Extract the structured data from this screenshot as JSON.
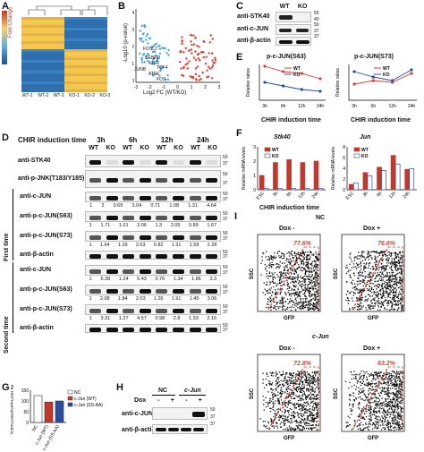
{
  "panels": {
    "A": {
      "label": "A",
      "legend_title": "Fold Change",
      "legend_ticks": [
        "4",
        "2",
        "0",
        "-2",
        "-4"
      ],
      "samples": [
        "WT-1",
        "WT-2",
        "WT-3",
        "KO-1",
        "KO-2",
        "KO-3"
      ]
    },
    "B": {
      "label": "B",
      "ylabel": "-Log10 (p-value)",
      "xlabel": "Log2 FC (WT/KO)",
      "xticks": [
        "-3",
        "-2",
        "-1",
        "0",
        "1",
        "2",
        "3"
      ],
      "yticks": [
        "0",
        "1",
        "2",
        "3",
        "4"
      ],
      "genes": [
        "FOSL2",
        "CEBPD",
        "KLF6",
        "JUNB",
        "ATF6",
        "TCF4",
        "FOS"
      ]
    },
    "C": {
      "label": "C",
      "header": [
        "WT",
        "KO"
      ],
      "rows": [
        "anti-STK40",
        "anti-c-JUN",
        "anti-β-actin"
      ],
      "mw": [
        "55",
        "40",
        "50",
        "37",
        "37"
      ]
    },
    "D": {
      "label": "D",
      "title": "CHIR induction time",
      "times": [
        "3h",
        "6h",
        "12h",
        "24h"
      ],
      "genotypes": [
        "WT",
        "KO",
        "WT",
        "KO",
        "WT",
        "KO",
        "WT",
        "KO"
      ],
      "top_rows": [
        "anti-STK40",
        "anti-p-JNK(T183/Y185)"
      ],
      "first_time": "First time",
      "second_time": "Second time",
      "rows1": [
        "anti-c-JUN",
        "anti-p-c-JUN(S63)",
        "anti-p-c-JUN(S73)",
        "anti-β-actin"
      ],
      "rows2": [
        "anti-c-JUN",
        "anti-p-c-JUN(S63)",
        "anti-p-c-JUN(S73)",
        "anti-β-actin"
      ],
      "quant1_cjun": [
        "1",
        "2",
        "0.69",
        "3.04",
        "0.71",
        "1.08",
        "1.31",
        "4.64"
      ],
      "quant1_s63": [
        "1",
        "1.71",
        "1.01",
        "2.06",
        "1.3",
        "2.05",
        "0.89",
        "1.67"
      ],
      "quant1_s73": [
        "1",
        "1.64",
        "1.29",
        "2.63",
        "0.82",
        "1.31",
        "1.58",
        "2.28"
      ],
      "quant2_cjun": [
        "1",
        "6.38",
        "1.24",
        "5.43",
        "0.76",
        "1.34",
        "1.86",
        "3.3"
      ],
      "quant2_s63": [
        "1",
        "2.08",
        "1.84",
        "2.03",
        "1.26",
        "1.91",
        "1.45",
        "3.06"
      ],
      "quant2_s73": [
        "1",
        "3.31",
        "1.27",
        "4.57",
        "0.98",
        "2.8",
        "1.33",
        "2.16"
      ],
      "mw": [
        "50",
        "37",
        "50",
        "37",
        "50",
        "37",
        "50",
        "37",
        "50",
        "37"
      ]
    },
    "E": {
      "label": "E",
      "plot1": {
        "title": "p-c-JUN(S63)",
        "ylabel": "Relative ratios",
        "legend": [
          "WT",
          "KO"
        ],
        "x": [
          "3h",
          "6h",
          "12h",
          "24h"
        ],
        "xlabel": "CHIR induction time"
      },
      "plot2": {
        "title": "p-c-JUN(S73)",
        "ylabel": "Relative ratios",
        "legend": [
          "WT",
          "KO"
        ],
        "x": [
          "3h",
          "6h",
          "12h",
          "24h"
        ],
        "xlabel": "CHIR induction time"
      }
    },
    "F": {
      "label": "F",
      "plot1": {
        "title": "Stk40",
        "ylabel": "Relative mRNA levels",
        "legend": [
          "WT",
          "KO"
        ],
        "x": [
          "ESC",
          "3h",
          "6h",
          "12h",
          "24h"
        ],
        "yticks": [
          "0",
          "1",
          "2",
          "3"
        ]
      },
      "plot2": {
        "title": "Jun",
        "ylabel": "Relative mRNA levels",
        "legend": [
          "WT",
          "KO"
        ],
        "x": [
          "ESC",
          "3h",
          "6h",
          "12h",
          "24h"
        ],
        "yticks": [
          "0",
          "2",
          "4",
          "6",
          "8"
        ]
      },
      "xlabel": "CHIR induction time"
    },
    "G": {
      "label": "G",
      "ylabel": "TOPFLASH/FOPFLASH Ratios",
      "legend": [
        "NC",
        "c-Jun (WT)",
        "c-Jun (SS-AA)"
      ],
      "x": [
        "NC",
        "c-Jun (WT)",
        "c-Jun (SS-AA)"
      ],
      "yticks": [
        "0",
        "50",
        "100",
        "150"
      ]
    },
    "H": {
      "label": "H",
      "groups": [
        "NC",
        "c-Jun"
      ],
      "dox_label": "Dox",
      "dox_states": [
        "-",
        "+",
        "-",
        "+"
      ],
      "rows": [
        "anti-c-JUN",
        "anti-β-actin"
      ],
      "mw": [
        "50",
        "37",
        "37"
      ]
    },
    "I": {
      "label": "I",
      "group1": "NC",
      "group2": "c-Jun",
      "conds": [
        "Dox -",
        "Dox +"
      ],
      "percents": [
        "77.6%",
        "76.6%",
        "72.8%",
        "63.2%"
      ],
      "ylabel": "SSC",
      "xlabel": "GFP",
      "yticks": [
        "3,167,129",
        "2,000,000",
        "1,000,000",
        "0"
      ],
      "xticks": [
        "10^2.8",
        "10^3",
        "10^4",
        "10^5"
      ]
    }
  },
  "chart_data": [
    {
      "type": "line",
      "title": "p-c-JUN(S63)",
      "xlabel": "CHIR induction time",
      "ylabel": "Relative ratios",
      "categories": [
        "3h",
        "6h",
        "12h",
        "24h"
      ],
      "series": [
        {
          "name": "WT",
          "values": [
            1.9,
            1.6,
            1.5,
            1.2
          ]
        },
        {
          "name": "KO",
          "values": [
            1.0,
            0.8,
            0.6,
            0.5
          ]
        }
      ]
    },
    {
      "type": "line",
      "title": "p-c-JUN(S73)",
      "xlabel": "CHIR induction time",
      "ylabel": "Relative ratios",
      "categories": [
        "3h",
        "6h",
        "12h",
        "24h"
      ],
      "series": [
        {
          "name": "WT",
          "values": [
            0.9,
            1.1,
            1.0,
            1.5
          ]
        },
        {
          "name": "KO",
          "values": [
            1.6,
            1.3,
            1.1,
            1.7
          ]
        }
      ]
    },
    {
      "type": "bar",
      "title": "Stk40",
      "ylabel": "Relative mRNA levels",
      "categories": [
        "ESC",
        "3h",
        "6h",
        "12h",
        "24h"
      ],
      "ylim": [
        0,
        3
      ],
      "series": [
        {
          "name": "WT",
          "values": [
            1.0,
            1.9,
            2.1,
            1.9,
            2.0
          ]
        },
        {
          "name": "KO",
          "values": [
            0.1,
            0.1,
            0.1,
            0.1,
            0.1
          ]
        }
      ]
    },
    {
      "type": "bar",
      "title": "Jun",
      "ylabel": "Relative mRNA levels",
      "categories": [
        "ESC",
        "3h",
        "6h",
        "12h",
        "24h"
      ],
      "ylim": [
        0,
        8
      ],
      "series": [
        {
          "name": "WT",
          "values": [
            1.0,
            3.2,
            4.2,
            6.4,
            3.8
          ]
        },
        {
          "name": "KO",
          "values": [
            1.3,
            2.6,
            3.6,
            4.8,
            3.9
          ]
        }
      ]
    },
    {
      "type": "bar",
      "ylabel": "TOPFLASH/FOPFLASH Ratios",
      "categories": [
        "NC",
        "c-Jun (WT)",
        "c-Jun (SS-AA)"
      ],
      "ylim": [
        0,
        150
      ],
      "values": [
        125,
        95,
        100
      ]
    }
  ]
}
